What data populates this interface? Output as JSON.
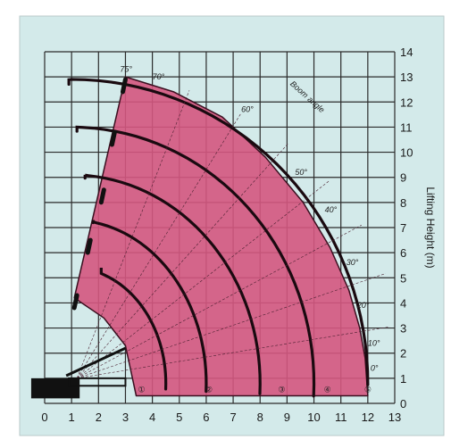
{
  "chart_data": {
    "type": "area",
    "title": "",
    "xlabel": "",
    "ylabel": "Lifting Height (m)",
    "x_ticks": [
      "0",
      "1",
      "2",
      "3",
      "4",
      "5",
      "6",
      "7",
      "8",
      "9",
      "10",
      "11",
      "12",
      "13"
    ],
    "y_ticks": [
      "0",
      "1",
      "2",
      "3",
      "4",
      "5",
      "6",
      "7",
      "8",
      "9",
      "10",
      "11",
      "12",
      "13",
      "14"
    ],
    "xlim": [
      0,
      13
    ],
    "ylim": [
      0,
      14
    ],
    "grid": true,
    "fill_color": "#d4577f",
    "background_color": "#d3eaea",
    "annotations": [
      "Boom angle"
    ],
    "radius_markers": [
      "①",
      "②",
      "③",
      "④",
      "⑤"
    ],
    "angle_labels": [
      "0°",
      "10°",
      "20°",
      "30°",
      "40°",
      "50°",
      "60°",
      "70°",
      "75°"
    ],
    "envelope": {
      "outer": [
        [
          3,
          13
        ],
        [
          4.8,
          12.4
        ],
        [
          6.6,
          11.4
        ],
        [
          8.2,
          9.8
        ],
        [
          9.6,
          8.0
        ],
        [
          10.6,
          6.2
        ],
        [
          11.3,
          4.5
        ],
        [
          11.7,
          3.0
        ],
        [
          11.9,
          1.8
        ],
        [
          12.0,
          0.3
        ]
      ],
      "inner": [
        [
          1.1,
          4.2
        ],
        [
          2.2,
          3.4
        ],
        [
          3.0,
          2.3
        ],
        [
          3.4,
          0.3
        ]
      ]
    },
    "boom_arcs": [
      {
        "name": "",
        "r_top": 12.9,
        "x_end": 12.0
      },
      {
        "name": "",
        "r_top": 11.0,
        "x_end": 10.0
      },
      {
        "name": "",
        "r_top": 9.1,
        "x_end": 8.0
      },
      {
        "name": "",
        "r_top": 7.3,
        "x_end": 6.0
      },
      {
        "name": "",
        "r_top": 5.4,
        "x_end": 4.5
      }
    ]
  }
}
